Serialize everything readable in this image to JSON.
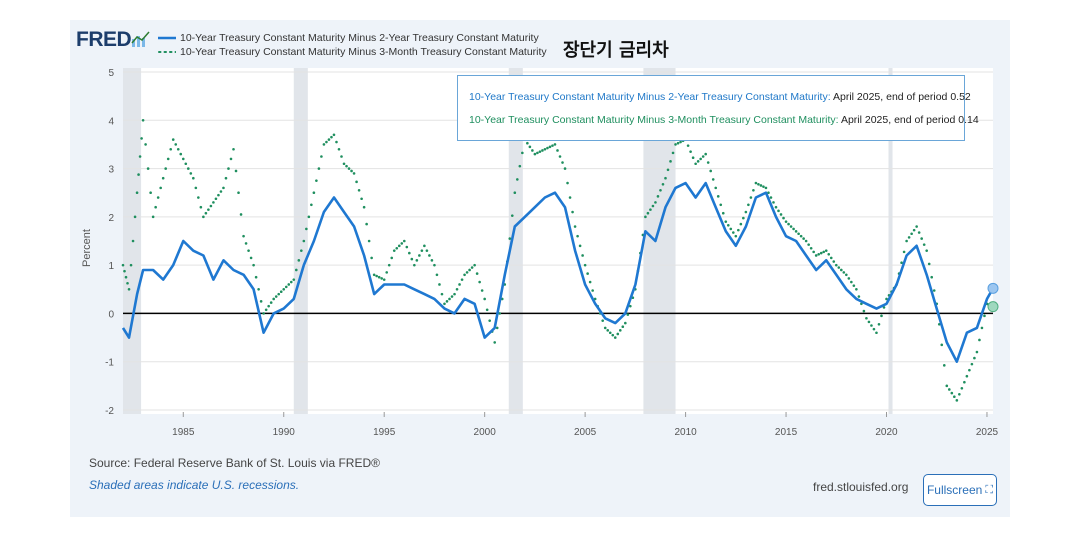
{
  "logo": {
    "text": "FRED"
  },
  "header": {
    "korean_title": "장단기 금리차"
  },
  "legend": [
    {
      "name": "10-Year Treasury Constant Maturity Minus 2-Year Treasury Constant Maturity",
      "style": "solid",
      "color": "#1f78d1"
    },
    {
      "name": "10-Year Treasury Constant Maturity Minus 3-Month Treasury Constant Maturity",
      "style": "dotted",
      "color": "#1f8f5f"
    }
  ],
  "tooltip": {
    "row1_name": "10-Year Treasury Constant Maturity Minus 2-Year Treasury Constant Maturity:",
    "row1_value": "April 2025, end of period 0.52",
    "row2_name": "10-Year Treasury Constant Maturity Minus 3-Month Treasury Constant Maturity:",
    "row2_value": "April 2025, end of period 0.14"
  },
  "footer": {
    "source": "Source: Federal Reserve Bank of St. Louis via FRED®",
    "note": "Shaded areas indicate U.S. recessions.",
    "site": "fred.stlouisfed.org",
    "fullscreen_label": "Fullscreen"
  },
  "chart_data": {
    "type": "line",
    "ylabel": "Percent",
    "xlabel": "",
    "xlim": [
      1982,
      2025.3
    ],
    "ylim": [
      -2,
      5
    ],
    "x_ticks": [
      "1985",
      "1990",
      "1995",
      "2000",
      "2005",
      "2010",
      "2015",
      "2020",
      "2025"
    ],
    "y_ticks": [
      "5",
      "4",
      "3",
      "2",
      "1",
      "0",
      "-1",
      "-2"
    ],
    "recessions": [
      [
        1981.6,
        1982.9
      ],
      [
        1990.5,
        1991.2
      ],
      [
        2001.2,
        2001.9
      ],
      [
        2007.9,
        2009.5
      ],
      [
        2020.1,
        2020.3
      ]
    ],
    "zero_line": true,
    "series": [
      {
        "name": "10-Year Treasury Constant Maturity Minus 2-Year Treasury Constant Maturity",
        "style": "solid",
        "x": [
          1982.0,
          1982.3,
          1982.7,
          1983.0,
          1983.5,
          1984.0,
          1984.5,
          1985.0,
          1985.5,
          1986.0,
          1986.5,
          1987.0,
          1987.5,
          1988.0,
          1988.5,
          1989.0,
          1989.5,
          1990.0,
          1990.5,
          1991.0,
          1991.5,
          1992.0,
          1992.5,
          1993.0,
          1993.5,
          1994.0,
          1994.5,
          1995.0,
          1995.5,
          1996.0,
          1996.5,
          1997.0,
          1997.5,
          1998.0,
          1998.5,
          1999.0,
          1999.5,
          2000.0,
          2000.5,
          2001.0,
          2001.5,
          2002.0,
          2002.5,
          2003.0,
          2003.5,
          2004.0,
          2004.5,
          2005.0,
          2005.5,
          2006.0,
          2006.5,
          2007.0,
          2007.5,
          2008.0,
          2008.5,
          2009.0,
          2009.5,
          2010.0,
          2010.5,
          2011.0,
          2011.5,
          2012.0,
          2012.5,
          2013.0,
          2013.5,
          2014.0,
          2014.5,
          2015.0,
          2015.5,
          2016.0,
          2016.5,
          2017.0,
          2017.5,
          2018.0,
          2018.5,
          2019.0,
          2019.5,
          2020.0,
          2020.5,
          2021.0,
          2021.5,
          2022.0,
          2022.5,
          2023.0,
          2023.5,
          2024.0,
          2024.5,
          2025.0,
          2025.3
        ],
        "y": [
          -0.3,
          -0.5,
          0.4,
          0.9,
          0.9,
          0.7,
          1.0,
          1.5,
          1.3,
          1.2,
          0.7,
          1.1,
          0.9,
          0.8,
          0.5,
          -0.4,
          0.0,
          0.1,
          0.3,
          1.0,
          1.5,
          2.1,
          2.4,
          2.1,
          1.8,
          1.2,
          0.4,
          0.6,
          0.6,
          0.6,
          0.5,
          0.4,
          0.3,
          0.1,
          0.0,
          0.3,
          0.2,
          -0.5,
          -0.3,
          0.8,
          1.8,
          2.0,
          2.2,
          2.4,
          2.5,
          2.2,
          1.3,
          0.6,
          0.2,
          -0.1,
          -0.2,
          0.0,
          0.6,
          1.7,
          1.5,
          2.2,
          2.6,
          2.7,
          2.4,
          2.7,
          2.2,
          1.7,
          1.4,
          1.8,
          2.4,
          2.5,
          2.0,
          1.6,
          1.5,
          1.2,
          0.9,
          1.1,
          0.8,
          0.5,
          0.3,
          0.2,
          0.1,
          0.2,
          0.6,
          1.2,
          1.4,
          0.8,
          0.1,
          -0.6,
          -1.0,
          -0.4,
          -0.3,
          0.3,
          0.52
        ]
      },
      {
        "name": "10-Year Treasury Constant Maturity Minus 3-Month Treasury Constant Maturity",
        "style": "dotted",
        "x": [
          1982.0,
          1982.3,
          1982.7,
          1983.0,
          1983.5,
          1984.0,
          1984.5,
          1985.0,
          1985.5,
          1986.0,
          1986.5,
          1987.0,
          1987.5,
          1988.0,
          1988.5,
          1989.0,
          1989.5,
          1990.0,
          1990.5,
          1991.0,
          1991.5,
          1992.0,
          1992.5,
          1993.0,
          1993.5,
          1994.0,
          1994.5,
          1995.0,
          1995.5,
          1996.0,
          1996.5,
          1997.0,
          1997.5,
          1998.0,
          1998.5,
          1999.0,
          1999.5,
          2000.0,
          2000.5,
          2001.0,
          2001.5,
          2002.0,
          2002.5,
          2003.0,
          2003.5,
          2004.0,
          2004.5,
          2005.0,
          2005.5,
          2006.0,
          2006.5,
          2007.0,
          2007.5,
          2008.0,
          2008.5,
          2009.0,
          2009.5,
          2010.0,
          2010.5,
          2011.0,
          2011.5,
          2012.0,
          2012.5,
          2013.0,
          2013.5,
          2014.0,
          2014.5,
          2015.0,
          2015.5,
          2016.0,
          2016.5,
          2017.0,
          2017.5,
          2018.0,
          2018.5,
          2019.0,
          2019.5,
          2020.0,
          2020.5,
          2021.0,
          2021.5,
          2022.0,
          2022.5,
          2023.0,
          2023.5,
          2024.0,
          2024.5,
          2025.0,
          2025.3
        ],
        "y": [
          1.0,
          0.5,
          2.5,
          4.0,
          2.0,
          2.8,
          3.6,
          3.2,
          2.8,
          2.0,
          2.3,
          2.6,
          3.4,
          1.6,
          1.0,
          0.0,
          0.3,
          0.5,
          0.7,
          1.5,
          2.5,
          3.5,
          3.7,
          3.1,
          2.9,
          2.2,
          0.8,
          0.7,
          1.3,
          1.5,
          1.0,
          1.4,
          1.0,
          0.2,
          0.4,
          0.8,
          1.0,
          0.3,
          -0.6,
          0.6,
          2.5,
          3.6,
          3.3,
          3.4,
          3.5,
          3.0,
          1.8,
          1.0,
          0.3,
          -0.3,
          -0.5,
          -0.2,
          0.5,
          2.0,
          2.3,
          2.8,
          3.5,
          3.6,
          3.1,
          3.3,
          2.6,
          1.9,
          1.6,
          2.1,
          2.7,
          2.6,
          2.2,
          1.9,
          1.7,
          1.5,
          1.2,
          1.3,
          1.0,
          0.8,
          0.5,
          -0.1,
          -0.4,
          0.3,
          0.6,
          1.5,
          1.8,
          1.3,
          0.2,
          -1.5,
          -1.8,
          -1.3,
          -0.8,
          0.2,
          0.14
        ]
      }
    ]
  }
}
